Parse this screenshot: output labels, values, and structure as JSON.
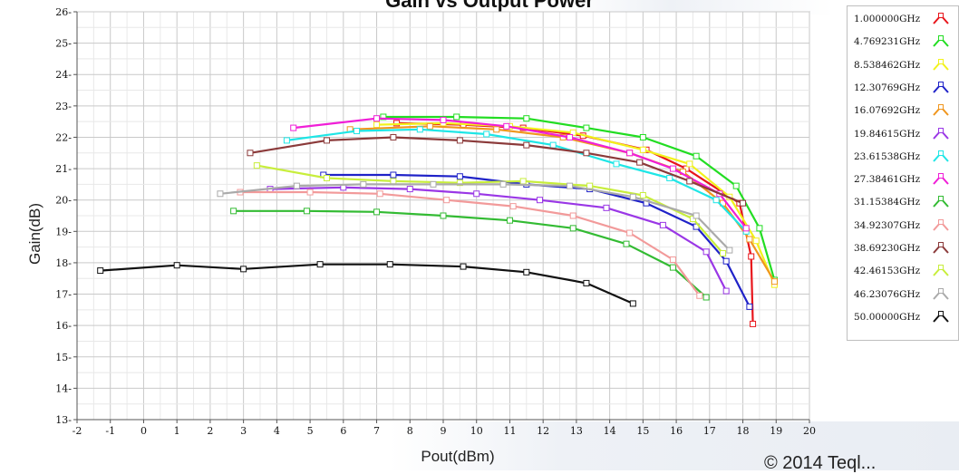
{
  "chart_data": {
    "type": "line",
    "title": "Gain vs Output Power",
    "xlabel": "Pout(dBm)",
    "ylabel": "Gain(dB)",
    "xlim": [
      -2,
      20
    ],
    "ylim": [
      13,
      26
    ],
    "x_ticks": [
      -2,
      -1,
      0,
      1,
      2,
      3,
      4,
      5,
      6,
      7,
      8,
      9,
      10,
      11,
      12,
      13,
      14,
      15,
      16,
      17,
      18,
      19,
      20
    ],
    "y_ticks": [
      13,
      14,
      15,
      16,
      17,
      18,
      19,
      20,
      21,
      22,
      23,
      24,
      25,
      26
    ],
    "grid": true,
    "legend_position": "right",
    "series": [
      {
        "name": "1.000000GHz",
        "color": "#e8151b",
        "points": [
          [
            7.6,
            22.45
          ],
          [
            9.6,
            22.4
          ],
          [
            11.4,
            22.3
          ],
          [
            13.2,
            22.05
          ],
          [
            15.1,
            21.6
          ],
          [
            16.3,
            21.0
          ],
          [
            17.9,
            19.9
          ],
          [
            18.25,
            18.2
          ],
          [
            18.3,
            16.05
          ]
        ]
      },
      {
        "name": "4.769231GHz",
        "color": "#22dd22",
        "points": [
          [
            7.2,
            22.65
          ],
          [
            9.4,
            22.65
          ],
          [
            11.5,
            22.6
          ],
          [
            13.3,
            22.3
          ],
          [
            15.0,
            22.0
          ],
          [
            16.6,
            21.4
          ],
          [
            17.8,
            20.45
          ],
          [
            18.5,
            19.1
          ],
          [
            18.95,
            17.45
          ]
        ]
      },
      {
        "name": "8.538462GHz",
        "color": "#f2f21c",
        "points": [
          [
            7.0,
            22.4
          ],
          [
            9.0,
            22.45
          ],
          [
            11.0,
            22.35
          ],
          [
            12.9,
            22.15
          ],
          [
            15.0,
            21.6
          ],
          [
            16.4,
            21.15
          ],
          [
            17.6,
            20.1
          ],
          [
            18.4,
            18.7
          ],
          [
            18.95,
            17.3
          ]
        ]
      },
      {
        "name": "12.30769GHz",
        "color": "#1f22c8",
        "points": [
          [
            5.4,
            20.8
          ],
          [
            7.5,
            20.8
          ],
          [
            9.5,
            20.75
          ],
          [
            11.5,
            20.5
          ],
          [
            13.4,
            20.35
          ],
          [
            15.1,
            19.9
          ],
          [
            16.6,
            19.15
          ],
          [
            17.5,
            18.05
          ],
          [
            18.2,
            16.6
          ]
        ]
      },
      {
        "name": "16.07692GHz",
        "color": "#f0961e",
        "points": [
          [
            6.2,
            22.25
          ],
          [
            8.6,
            22.35
          ],
          [
            10.6,
            22.25
          ],
          [
            12.6,
            22.0
          ],
          [
            14.6,
            21.5
          ],
          [
            16.2,
            20.9
          ],
          [
            17.4,
            19.9
          ],
          [
            18.2,
            18.75
          ],
          [
            18.95,
            17.4
          ]
        ]
      },
      {
        "name": "19.84615GHz",
        "color": "#9a37e6",
        "points": [
          [
            3.8,
            20.35
          ],
          [
            6.0,
            20.4
          ],
          [
            8.0,
            20.35
          ],
          [
            10.0,
            20.2
          ],
          [
            11.9,
            20.0
          ],
          [
            13.9,
            19.75
          ],
          [
            15.6,
            19.2
          ],
          [
            16.9,
            18.35
          ],
          [
            17.5,
            17.1
          ]
        ]
      },
      {
        "name": "23.61538GHz",
        "color": "#1ee6e6",
        "points": [
          [
            4.3,
            21.9
          ],
          [
            6.4,
            22.2
          ],
          [
            8.3,
            22.25
          ],
          [
            10.3,
            22.1
          ],
          [
            12.3,
            21.75
          ],
          [
            14.2,
            21.15
          ],
          [
            15.8,
            20.7
          ],
          [
            17.2,
            20.0
          ],
          [
            18.1,
            19.0
          ]
        ]
      },
      {
        "name": "27.38461GHz",
        "color": "#f01ed7",
        "points": [
          [
            4.5,
            22.3
          ],
          [
            7.0,
            22.6
          ],
          [
            9.0,
            22.55
          ],
          [
            10.9,
            22.35
          ],
          [
            12.8,
            22.0
          ],
          [
            14.6,
            21.5
          ],
          [
            15.9,
            21.0
          ],
          [
            17.3,
            20.2
          ],
          [
            18.1,
            19.1
          ]
        ]
      },
      {
        "name": "31.15384GHz",
        "color": "#33bb33",
        "points": [
          [
            2.7,
            19.65
          ],
          [
            4.9,
            19.65
          ],
          [
            7.0,
            19.62
          ],
          [
            9.0,
            19.5
          ],
          [
            11.0,
            19.35
          ],
          [
            12.9,
            19.1
          ],
          [
            14.5,
            18.6
          ],
          [
            15.9,
            17.85
          ],
          [
            16.9,
            16.9
          ]
        ]
      },
      {
        "name": "34.92307GHz",
        "color": "#f29a9a",
        "points": [
          [
            2.9,
            20.25
          ],
          [
            5.0,
            20.25
          ],
          [
            7.1,
            20.2
          ],
          [
            9.1,
            20.0
          ],
          [
            11.1,
            19.8
          ],
          [
            12.9,
            19.5
          ],
          [
            14.6,
            18.95
          ],
          [
            15.9,
            18.1
          ],
          [
            16.7,
            16.95
          ]
        ]
      },
      {
        "name": "38.69230GHz",
        "color": "#8b3a3a",
        "points": [
          [
            3.2,
            21.5
          ],
          [
            5.5,
            21.9
          ],
          [
            7.5,
            22.0
          ],
          [
            9.5,
            21.9
          ],
          [
            11.5,
            21.75
          ],
          [
            13.3,
            21.5
          ],
          [
            14.9,
            21.2
          ],
          [
            16.4,
            20.6
          ],
          [
            18.0,
            19.9
          ]
        ]
      },
      {
        "name": "42.46153GHz",
        "color": "#c8ee3c",
        "points": [
          [
            3.4,
            21.1
          ],
          [
            5.5,
            20.7
          ],
          [
            7.5,
            20.6
          ],
          [
            9.5,
            20.55
          ],
          [
            11.4,
            20.6
          ],
          [
            13.4,
            20.45
          ],
          [
            15.0,
            20.15
          ],
          [
            16.5,
            19.4
          ],
          [
            17.4,
            18.3
          ]
        ]
      },
      {
        "name": "46.23076GHz",
        "color": "#aaaaaa",
        "points": [
          [
            2.3,
            20.2
          ],
          [
            4.6,
            20.45
          ],
          [
            6.6,
            20.5
          ],
          [
            8.7,
            20.5
          ],
          [
            10.8,
            20.5
          ],
          [
            12.8,
            20.45
          ],
          [
            14.7,
            20.1
          ],
          [
            16.6,
            19.5
          ],
          [
            17.6,
            18.4
          ]
        ]
      },
      {
        "name": "50.00000GHz",
        "color": "#111111",
        "points": [
          [
            -1.3,
            17.75
          ],
          [
            1.0,
            17.92
          ],
          [
            3.0,
            17.8
          ],
          [
            5.3,
            17.95
          ],
          [
            7.4,
            17.95
          ],
          [
            9.6,
            17.88
          ],
          [
            11.5,
            17.7
          ],
          [
            13.3,
            17.35
          ],
          [
            14.7,
            16.7
          ]
        ]
      }
    ]
  },
  "copyright": "© 2014 Teql..."
}
